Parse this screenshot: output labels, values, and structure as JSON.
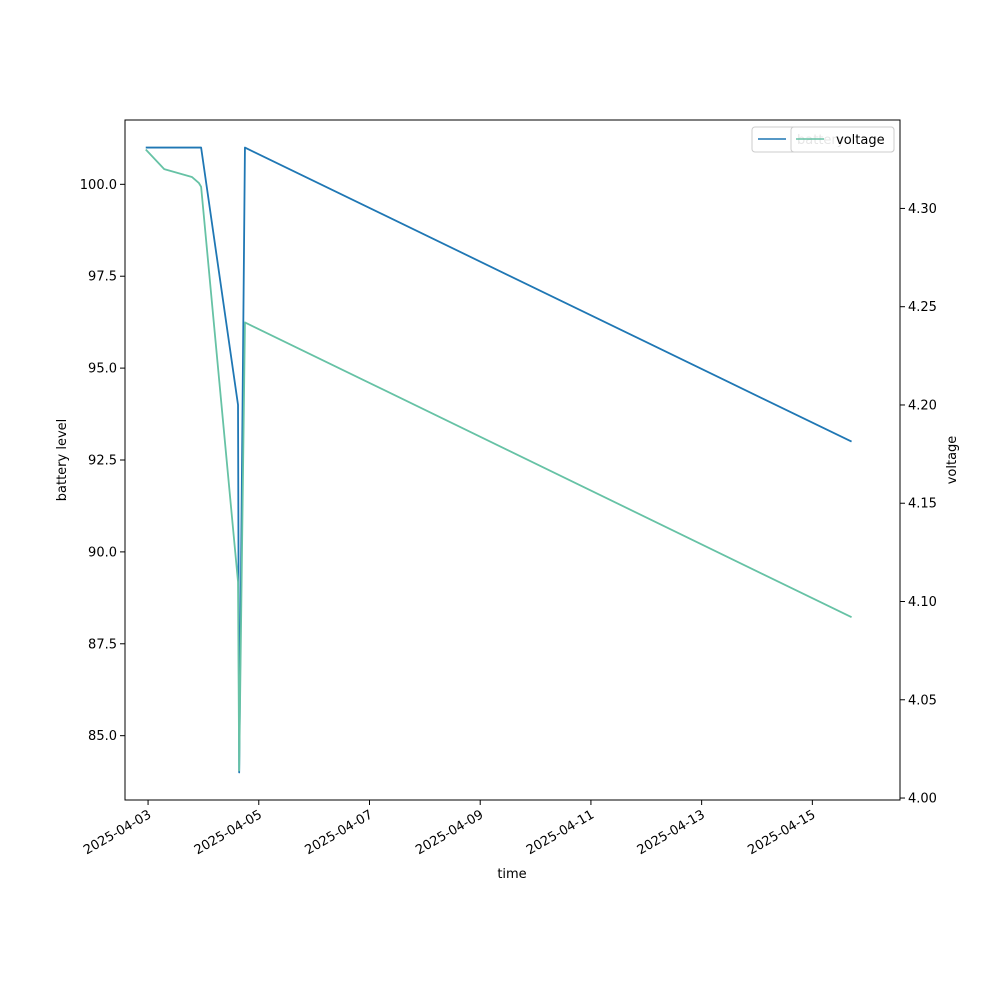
{
  "chart_data": {
    "type": "line",
    "xlabel": "time",
    "ylabel": "battery level",
    "ylabel_right": "voltage",
    "x_ticks": [
      "2025-04-03",
      "2025-04-05",
      "2025-04-07",
      "2025-04-09",
      "2025-04-11",
      "2025-04-13",
      "2025-04-15"
    ],
    "xlim": [
      "2025-04-02T14:00",
      "2025-04-16T14:00"
    ],
    "ylim_left": [
      83.25,
      101.75
    ],
    "y_ticks_left": [
      "85.0",
      "87.5",
      "90.0",
      "92.5",
      "95.0",
      "97.5",
      "100.0"
    ],
    "ylim_right": [
      3.999,
      4.345
    ],
    "y_ticks_right": [
      "4.00",
      "4.05",
      "4.10",
      "4.15",
      "4.20",
      "4.25",
      "4.30"
    ],
    "legend_placement": "top-right",
    "colors": {
      "battery": "#1f77b4",
      "voltage": "#66c2a5"
    },
    "series": [
      {
        "name": "battery",
        "axis": "left",
        "color": "#1f77b4",
        "points": [
          [
            "2025-04-02T23:00",
            101
          ],
          [
            "2025-04-03T23:00",
            101
          ],
          [
            "2025-04-04T15:00",
            94
          ],
          [
            "2025-04-04T15:30",
            84
          ],
          [
            "2025-04-04T18:00",
            101
          ],
          [
            "2025-04-15T17:00",
            93
          ]
        ]
      },
      {
        "name": "voltage",
        "axis": "right",
        "color": "#66c2a5",
        "points": [
          [
            "2025-04-02T23:00",
            4.33
          ],
          [
            "2025-04-03T07:00",
            4.32
          ],
          [
            "2025-04-03T19:00",
            4.316
          ],
          [
            "2025-04-03T22:00",
            4.313
          ],
          [
            "2025-04-03T23:00",
            4.311
          ],
          [
            "2025-04-04T15:00",
            4.11
          ],
          [
            "2025-04-04T15:30",
            4.014
          ],
          [
            "2025-04-04T18:00",
            4.242
          ],
          [
            "2025-04-15T17:00",
            4.092
          ]
        ]
      }
    ]
  }
}
